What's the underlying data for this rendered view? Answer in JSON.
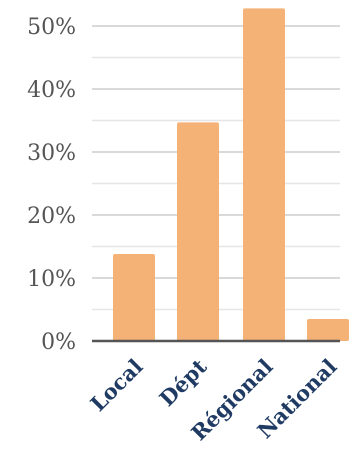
{
  "chart_data": {
    "type": "bar",
    "categories": [
      "Local",
      "Dépt",
      "Régional",
      "National"
    ],
    "values": [
      13.8,
      34.7,
      52.8,
      3.5
    ],
    "ylim": [
      0,
      53
    ],
    "yticks": [
      0,
      10,
      20,
      30,
      40,
      50
    ],
    "ytick_labels": [
      "0%",
      "10%",
      "20%",
      "30%",
      "40%",
      "50%"
    ],
    "grid": true,
    "bar_color": "#f4b277",
    "grid_color": "#d9d9d9",
    "axis_color": "#555555",
    "label_color": "#1f3b63"
  }
}
